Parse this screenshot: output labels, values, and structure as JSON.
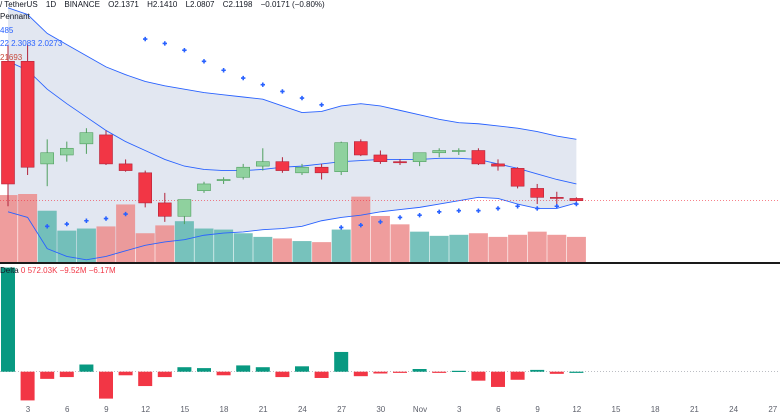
{
  "header": {
    "symbol": "/ TetherUS",
    "interval": "1D",
    "exchange": "BINANCE",
    "open": "O2.1371",
    "high": "H2.1410",
    "low": "L2.0807",
    "close": "C2.1198",
    "change": "−0.0171 (−0.80%)"
  },
  "indicators": {
    "pennant": "Pennant",
    "bb_line1": "485",
    "bb_line2": "22  2.3083  2.0273",
    "bb_line3": "21693",
    "delta_label": "Delta",
    "delta_values": "0  572.03K  −9.52M  −6.17M"
  },
  "colors": {
    "up": "#8fd19e",
    "up_border": "#4f9f5e",
    "down": "#f23645",
    "down_border": "#b2233a",
    "band_fill": "#dde3ee",
    "band_line": "#2962ff",
    "sar": "#2962ff",
    "vol_up": "#5fb7b0",
    "vol_down": "#ec8c8c",
    "delta_up": "#089981",
    "delta_down": "#f23645"
  },
  "chart_data": [
    {
      "type": "candlestick",
      "title": "",
      "ohlc": [
        [
          4.3,
          4.45,
          3.0,
          3.2
        ],
        [
          4.3,
          4.45,
          3.28,
          3.35
        ],
        [
          3.38,
          3.6,
          3.18,
          3.48
        ],
        [
          3.46,
          3.58,
          3.4,
          3.52
        ],
        [
          3.56,
          3.7,
          3.47,
          3.66
        ],
        [
          3.64,
          3.68,
          3.37,
          3.38
        ],
        [
          3.38,
          3.42,
          3.31,
          3.32
        ],
        [
          3.3,
          3.32,
          2.99,
          3.03
        ],
        [
          3.03,
          3.12,
          2.86,
          2.91
        ],
        [
          2.91,
          3.06,
          2.84,
          3.06
        ],
        [
          3.14,
          3.22,
          3.12,
          3.2
        ],
        [
          3.23,
          3.26,
          3.2,
          3.24
        ],
        [
          3.26,
          3.38,
          3.24,
          3.35
        ],
        [
          3.36,
          3.52,
          3.32,
          3.4
        ],
        [
          3.4,
          3.44,
          3.3,
          3.32
        ],
        [
          3.3,
          3.38,
          3.28,
          3.35
        ],
        [
          3.35,
          3.38,
          3.24,
          3.3
        ],
        [
          3.31,
          3.58,
          3.28,
          3.57
        ],
        [
          3.58,
          3.6,
          3.45,
          3.46
        ],
        [
          3.46,
          3.5,
          3.38,
          3.4
        ],
        [
          3.4,
          3.42,
          3.37,
          3.39
        ],
        [
          3.4,
          3.48,
          3.36,
          3.48
        ],
        [
          3.48,
          3.52,
          3.44,
          3.5
        ],
        [
          3.5,
          3.52,
          3.46,
          3.5
        ],
        [
          3.5,
          3.52,
          3.37,
          3.38
        ],
        [
          3.38,
          3.42,
          3.32,
          3.36
        ],
        [
          3.34,
          3.35,
          3.16,
          3.18
        ],
        [
          3.16,
          3.2,
          3.02,
          3.08
        ],
        [
          3.08,
          3.13,
          3.0,
          3.07
        ],
        [
          3.07,
          3.08,
          3.04,
          3.05
        ]
      ],
      "bollinger_upper": [
        4.78,
        4.72,
        4.55,
        4.45,
        4.35,
        4.25,
        4.18,
        4.12,
        4.08,
        4.05,
        4.02,
        4.0,
        3.98,
        3.96,
        3.9,
        3.84,
        3.85,
        3.9,
        3.92,
        3.9,
        3.86,
        3.82,
        3.78,
        3.75,
        3.74,
        3.72,
        3.7,
        3.67,
        3.63,
        3.6
      ],
      "bollinger_basis": [
        4.3,
        4.22,
        4.05,
        3.92,
        3.8,
        3.68,
        3.58,
        3.5,
        3.42,
        3.36,
        3.33,
        3.32,
        3.32,
        3.33,
        3.35,
        3.36,
        3.38,
        3.4,
        3.41,
        3.42,
        3.42,
        3.42,
        3.43,
        3.43,
        3.42,
        3.38,
        3.34,
        3.29,
        3.24,
        3.2
      ],
      "bollinger_lower": [
        2.95,
        2.9,
        2.62,
        2.55,
        2.52,
        2.55,
        2.6,
        2.65,
        2.68,
        2.7,
        2.74,
        2.76,
        2.77,
        2.79,
        2.8,
        2.82,
        2.87,
        2.9,
        2.92,
        2.95,
        2.97,
        2.99,
        3.02,
        3.05,
        3.08,
        3.07,
        3.02,
        2.98,
        2.98,
        3.03
      ],
      "sar": [
        null,
        null,
        2.82,
        2.84,
        2.87,
        2.89,
        2.93,
        4.5,
        4.46,
        4.4,
        4.3,
        4.22,
        4.15,
        4.09,
        4.03,
        3.97,
        3.91,
        2.81,
        2.83,
        2.86,
        2.9,
        2.92,
        2.95,
        2.96,
        2.96,
        2.98,
        3.0,
        2.98,
        3.0,
        3.02
      ],
      "volume": [
        1.28,
        1.3,
        0.98,
        0.6,
        0.64,
        0.68,
        1.1,
        0.55,
        0.7,
        0.78,
        0.64,
        0.62,
        0.55,
        0.48,
        0.45,
        0.4,
        0.38,
        0.62,
        1.25,
        0.88,
        0.72,
        0.58,
        0.5,
        0.52,
        0.55,
        0.48,
        0.52,
        0.58,
        0.52,
        0.48
      ],
      "volume_up": [
        false,
        false,
        true,
        true,
        true,
        false,
        false,
        false,
        false,
        true,
        true,
        true,
        true,
        true,
        false,
        true,
        false,
        true,
        false,
        false,
        false,
        true,
        true,
        true,
        false,
        false,
        false,
        false,
        false,
        false
      ],
      "ylim": [
        2.5,
        4.85
      ]
    },
    {
      "type": "bar",
      "title": "Delta",
      "values": [
        5.8,
        -1.6,
        -0.4,
        -0.3,
        0.4,
        -1.5,
        -0.2,
        -0.8,
        -0.3,
        0.25,
        0.2,
        -0.2,
        0.35,
        0.25,
        -0.3,
        0.3,
        -0.35,
        1.1,
        -0.25,
        -0.1,
        -0.05,
        0.15,
        -0.05,
        0.05,
        -0.5,
        -0.85,
        -0.45,
        0.1,
        -0.12,
        0.0
      ],
      "ylim": [
        -1.8,
        6.0
      ]
    }
  ],
  "time_axis": [
    "3",
    "6",
    "9",
    "12",
    "15",
    "18",
    "21",
    "24",
    "27",
    "30",
    "Nov",
    "3",
    "6",
    "9",
    "12",
    "15",
    "18",
    "21",
    "24",
    "27"
  ]
}
